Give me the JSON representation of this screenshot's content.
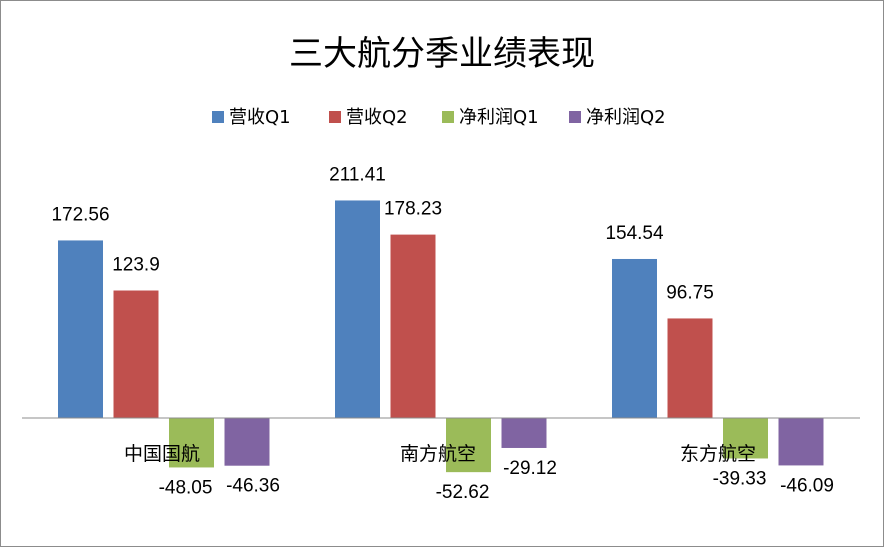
{
  "chart_data": {
    "type": "bar",
    "title": "三大航分季业绩表现",
    "categories": [
      "中国国航",
      "南方航空",
      "东方航空"
    ],
    "series": [
      {
        "name": "营收Q1",
        "color": "#4F81BD",
        "values": [
          172.56,
          211.41,
          154.54
        ],
        "labels": [
          "172.56",
          "211.41",
          "154.54"
        ]
      },
      {
        "name": "营收Q2",
        "color": "#C0504D",
        "values": [
          123.9,
          178.23,
          96.75
        ],
        "labels": [
          "123.9",
          "178.23",
          "96.75"
        ]
      },
      {
        "name": "净利润Q1",
        "color": "#9BBB59",
        "values": [
          -48.05,
          -52.62,
          -39.33
        ],
        "labels": [
          "-48.05",
          "-52.62",
          "-39.33"
        ]
      },
      {
        "name": "净利润Q2",
        "color": "#8064A2",
        "values": [
          -46.36,
          -29.12,
          -46.09
        ],
        "labels": [
          "-46.36",
          "-29.12",
          "-46.09"
        ]
      }
    ],
    "ylim": [
      -60,
      230
    ],
    "grid": false,
    "legend": "top"
  }
}
